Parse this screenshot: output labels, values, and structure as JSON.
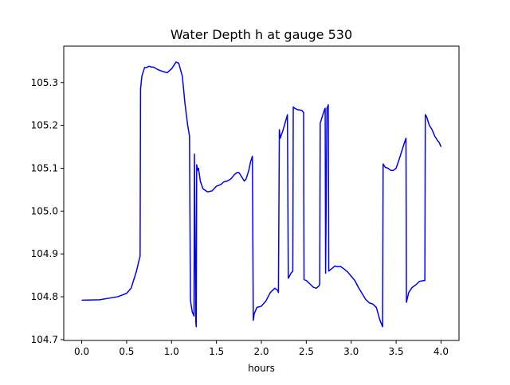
{
  "chart_data": {
    "type": "line",
    "title": "Water Depth h at gauge 530",
    "xlabel": "hours",
    "ylabel": "",
    "xlim": [
      -0.2,
      4.2
    ],
    "ylim": [
      104.698,
      105.385
    ],
    "xticks": [
      0.0,
      0.5,
      1.0,
      1.5,
      2.0,
      2.5,
      3.0,
      3.5,
      4.0
    ],
    "xtick_labels": [
      "0.0",
      "0.5",
      "1.0",
      "1.5",
      "2.0",
      "2.5",
      "3.0",
      "3.5",
      "4.0"
    ],
    "yticks": [
      104.7,
      104.8,
      104.9,
      105.0,
      105.1,
      105.2,
      105.3
    ],
    "ytick_labels": [
      "104.7",
      "104.8",
      "104.9",
      "105.0",
      "105.1",
      "105.2",
      "105.3"
    ],
    "grid": false,
    "series": [
      {
        "color": "#0000ff",
        "x": [
          0.0,
          0.2,
          0.4,
          0.5,
          0.55,
          0.58,
          0.61,
          0.63,
          0.65,
          0.655,
          0.67,
          0.7,
          0.72,
          0.75,
          0.78,
          0.8,
          0.85,
          0.9,
          0.95,
          1.0,
          1.02,
          1.05,
          1.08,
          1.12,
          1.15,
          1.18,
          1.2,
          1.21,
          1.215,
          1.23,
          1.25,
          1.255,
          1.27,
          1.275,
          1.28,
          1.29,
          1.3,
          1.32,
          1.35,
          1.4,
          1.45,
          1.5,
          1.55,
          1.58,
          1.62,
          1.66,
          1.7,
          1.73,
          1.75,
          1.78,
          1.81,
          1.83,
          1.86,
          1.88,
          1.9,
          1.91,
          1.92,
          1.95,
          2.0,
          2.05,
          2.1,
          2.15,
          2.18,
          2.19,
          2.2,
          2.21,
          2.24,
          2.27,
          2.29,
          2.3,
          2.33,
          2.35,
          2.355,
          2.37,
          2.4,
          2.45,
          2.47,
          2.475,
          2.5,
          2.55,
          2.58,
          2.61,
          2.64,
          2.65,
          2.655,
          2.68,
          2.7,
          2.71,
          2.715,
          2.73,
          2.74,
          2.745,
          2.75,
          2.78,
          2.82,
          2.85,
          2.88,
          2.92,
          2.96,
          3.0,
          3.04,
          3.08,
          3.12,
          3.16,
          3.2,
          3.24,
          3.28,
          3.32,
          3.35,
          3.355,
          3.38,
          3.41,
          3.44,
          3.47,
          3.5,
          3.53,
          3.56,
          3.59,
          3.61,
          3.615,
          3.64,
          3.68,
          3.72,
          3.76,
          3.81,
          3.82,
          3.825,
          3.84,
          3.87,
          3.9,
          3.93,
          3.96,
          3.98,
          4.0
        ],
        "y": [
          104.792,
          104.793,
          104.8,
          104.808,
          104.82,
          104.84,
          104.86,
          104.878,
          104.895,
          105.285,
          105.315,
          105.335,
          105.335,
          105.338,
          105.336,
          105.336,
          105.33,
          105.326,
          105.323,
          105.332,
          105.338,
          105.348,
          105.345,
          105.315,
          105.25,
          105.2,
          105.175,
          104.795,
          104.785,
          104.765,
          104.755,
          105.133,
          104.742,
          104.73,
          105.108,
          105.095,
          105.1,
          105.07,
          105.052,
          105.045,
          105.047,
          105.058,
          105.062,
          105.068,
          105.07,
          105.075,
          105.085,
          105.09,
          105.09,
          105.08,
          105.07,
          105.075,
          105.095,
          105.115,
          105.128,
          104.745,
          104.76,
          104.775,
          104.778,
          104.79,
          104.81,
          104.82,
          104.815,
          104.81,
          105.19,
          105.17,
          105.188,
          105.21,
          105.225,
          104.843,
          104.855,
          104.86,
          105.243,
          105.24,
          105.237,
          105.235,
          105.23,
          104.84,
          104.838,
          104.828,
          104.822,
          104.82,
          104.825,
          104.83,
          105.205,
          105.222,
          105.235,
          105.24,
          104.855,
          105.24,
          105.245,
          105.248,
          104.86,
          104.865,
          104.872,
          104.87,
          104.871,
          104.865,
          104.858,
          104.848,
          104.838,
          104.822,
          104.808,
          104.794,
          104.786,
          104.783,
          104.775,
          104.745,
          104.73,
          105.11,
          105.102,
          105.1,
          105.095,
          105.095,
          105.1,
          105.118,
          105.138,
          105.158,
          105.17,
          104.787,
          104.81,
          104.822,
          104.828,
          104.836,
          104.838,
          104.838,
          105.225,
          105.22,
          105.2,
          105.19,
          105.175,
          105.165,
          105.16,
          105.15
        ]
      }
    ]
  }
}
